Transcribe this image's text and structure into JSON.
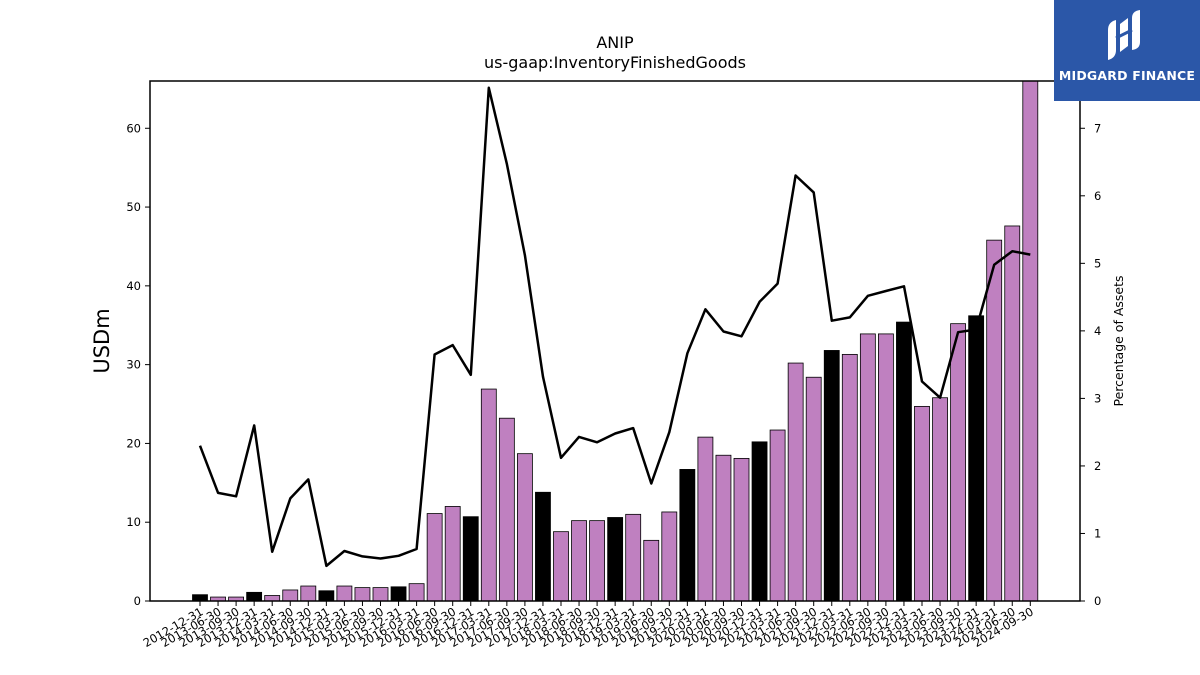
{
  "chart_data": {
    "type": "bar",
    "title": "ANIP",
    "subtitle": "us-gaap:InventoryFinishedGoods",
    "ylabel": "USDm",
    "y2label": "Percentage of Assets",
    "ylim": [
      0,
      66
    ],
    "y2lim": [
      0,
      7.7
    ],
    "yticks": [
      0,
      10,
      20,
      30,
      40,
      50,
      60
    ],
    "y2ticks": [
      0,
      1,
      2,
      3,
      4,
      5,
      6,
      7
    ],
    "grid": false,
    "categories": [
      "2012-12-31",
      "2013-06-30",
      "2013-09-30",
      "2013-12-31",
      "2014-03-31",
      "2014-06-30",
      "2014-09-30",
      "2014-12-31",
      "2015-03-31",
      "2015-06-30",
      "2015-09-30",
      "2015-12-31",
      "2016-03-31",
      "2016-06-30",
      "2016-09-30",
      "2016-12-31",
      "2017-03-31",
      "2017-06-30",
      "2017-09-30",
      "2017-12-31",
      "2018-03-31",
      "2018-06-30",
      "2018-09-30",
      "2018-12-31",
      "2019-03-31",
      "2019-06-30",
      "2019-09-30",
      "2019-12-31",
      "2020-03-31",
      "2020-06-30",
      "2020-09-30",
      "2020-12-31",
      "2021-03-31",
      "2021-06-30",
      "2021-09-30",
      "2021-12-31",
      "2022-03-31",
      "2022-06-30",
      "2022-09-30",
      "2022-12-31",
      "2023-03-31",
      "2023-06-30",
      "2023-09-30",
      "2023-12-31",
      "2024-03-31",
      "2024-06-30",
      "2024-09-30"
    ],
    "series": [
      {
        "type": "bar",
        "axis": "left",
        "values": [
          0.8,
          0.5,
          0.5,
          1.1,
          0.7,
          1.4,
          1.9,
          1.3,
          1.9,
          1.7,
          1.7,
          1.8,
          2.2,
          11.1,
          12.0,
          10.7,
          26.9,
          23.2,
          18.7,
          13.8,
          8.8,
          10.2,
          10.2,
          10.6,
          11.0,
          7.7,
          11.3,
          16.7,
          20.8,
          18.5,
          18.1,
          20.2,
          21.7,
          30.2,
          28.4,
          31.8,
          31.3,
          33.9,
          33.9,
          35.4,
          24.7,
          25.8,
          35.2,
          36.2,
          45.8,
          47.6,
          66.0
        ],
        "year_end_color": "#000000",
        "quarter_color": "#bf80c0"
      },
      {
        "type": "line",
        "axis": "right",
        "color": "#000000",
        "values": [
          2.3,
          1.6,
          1.55,
          2.6,
          0.73,
          1.52,
          1.8,
          0.52,
          0.74,
          0.66,
          0.63,
          0.67,
          0.77,
          3.65,
          3.79,
          3.35,
          7.6,
          6.47,
          5.12,
          3.32,
          2.12,
          2.43,
          2.35,
          2.48,
          2.56,
          1.74,
          2.5,
          3.67,
          4.32,
          3.99,
          3.92,
          4.43,
          4.7,
          6.3,
          6.05,
          4.15,
          4.2,
          4.52,
          4.59,
          4.66,
          3.25,
          3.01,
          3.98,
          4.02,
          4.98,
          5.18,
          5.13
        ]
      }
    ]
  },
  "branding": {
    "logo_text": "MIDGARD FINANCE",
    "background_color": "#2b57a8"
  }
}
